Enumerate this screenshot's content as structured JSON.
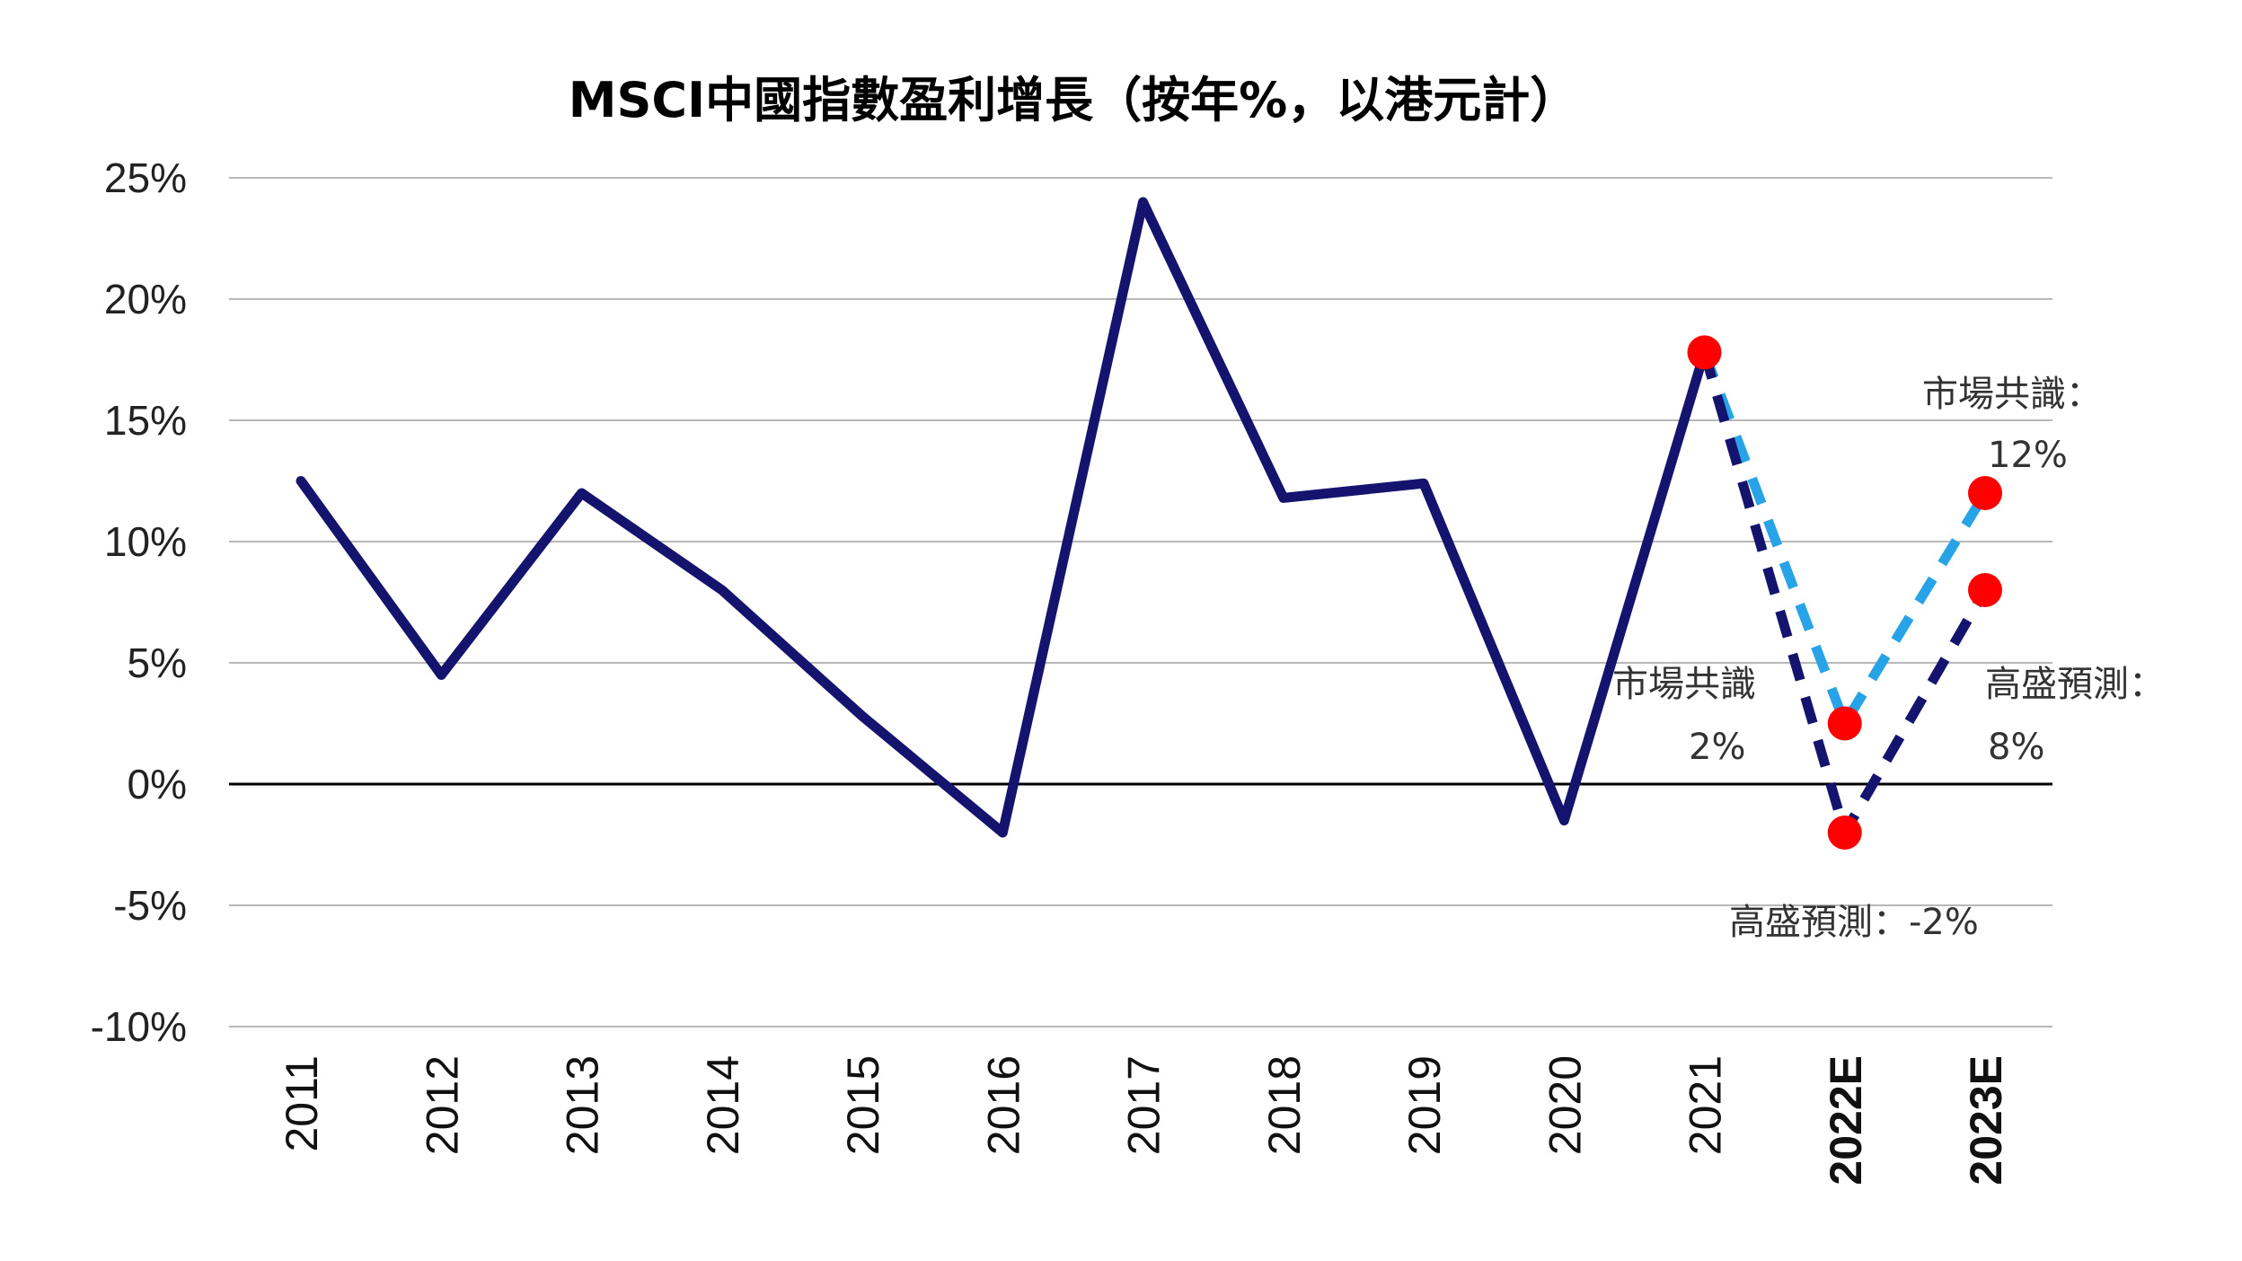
{
  "chart_data": {
    "type": "line",
    "title": "MSCI中國指數盈利增長（按年%，以港元計）",
    "xlabel": "",
    "ylabel": "",
    "ylim": [
      -10,
      25
    ],
    "yticks": [
      25,
      20,
      15,
      10,
      5,
      0,
      -5,
      -10
    ],
    "ytick_labels": [
      "25%",
      "20%",
      "15%",
      "10%",
      "5%",
      "0%",
      "-5%",
      "-10%"
    ],
    "categories": [
      "2011",
      "2012",
      "2013",
      "2014",
      "2015",
      "2016",
      "2017",
      "2018",
      "2019",
      "2020",
      "2021",
      "2022E",
      "2023E"
    ],
    "grid": true,
    "legend": "none",
    "series": [
      {
        "style": "solid",
        "color": "#14146e",
        "values": [
          12.5,
          4.5,
          12.0,
          8.0,
          2.8,
          -2.0,
          24.0,
          11.8,
          12.4,
          -1.5,
          17.8,
          null,
          null
        ]
      },
      {
        "style": "dashed",
        "color": "#29a3e8",
        "values": [
          null,
          null,
          null,
          null,
          null,
          null,
          null,
          null,
          null,
          null,
          17.8,
          2.5,
          12.0
        ]
      },
      {
        "style": "dashed",
        "color": "#14146e",
        "values": [
          null,
          null,
          null,
          null,
          null,
          null,
          null,
          null,
          null,
          null,
          17.8,
          -2.0,
          8.0
        ]
      }
    ],
    "markers": [
      {
        "category": "2021",
        "value": 17.8,
        "color": "#ff0000"
      },
      {
        "category": "2022E",
        "value": 2.5,
        "color": "#ff0000"
      },
      {
        "category": "2022E",
        "value": -2.0,
        "color": "#ff0000"
      },
      {
        "category": "2023E",
        "value": 12.0,
        "color": "#ff0000"
      },
      {
        "category": "2023E",
        "value": 8.0,
        "color": "#ff0000"
      }
    ],
    "annotations": [
      {
        "text": "市場共識：",
        "near": "2023E"
      },
      {
        "text": "12%",
        "near": "2023E"
      },
      {
        "text": "市場共識",
        "near": "2022E"
      },
      {
        "text": "2%",
        "near": "2022E"
      },
      {
        "text": "高盛預測：",
        "near": "2023E"
      },
      {
        "text": "8%",
        "near": "2023E"
      },
      {
        "text": "高盛預測：-2%",
        "near": "2022E"
      }
    ]
  }
}
